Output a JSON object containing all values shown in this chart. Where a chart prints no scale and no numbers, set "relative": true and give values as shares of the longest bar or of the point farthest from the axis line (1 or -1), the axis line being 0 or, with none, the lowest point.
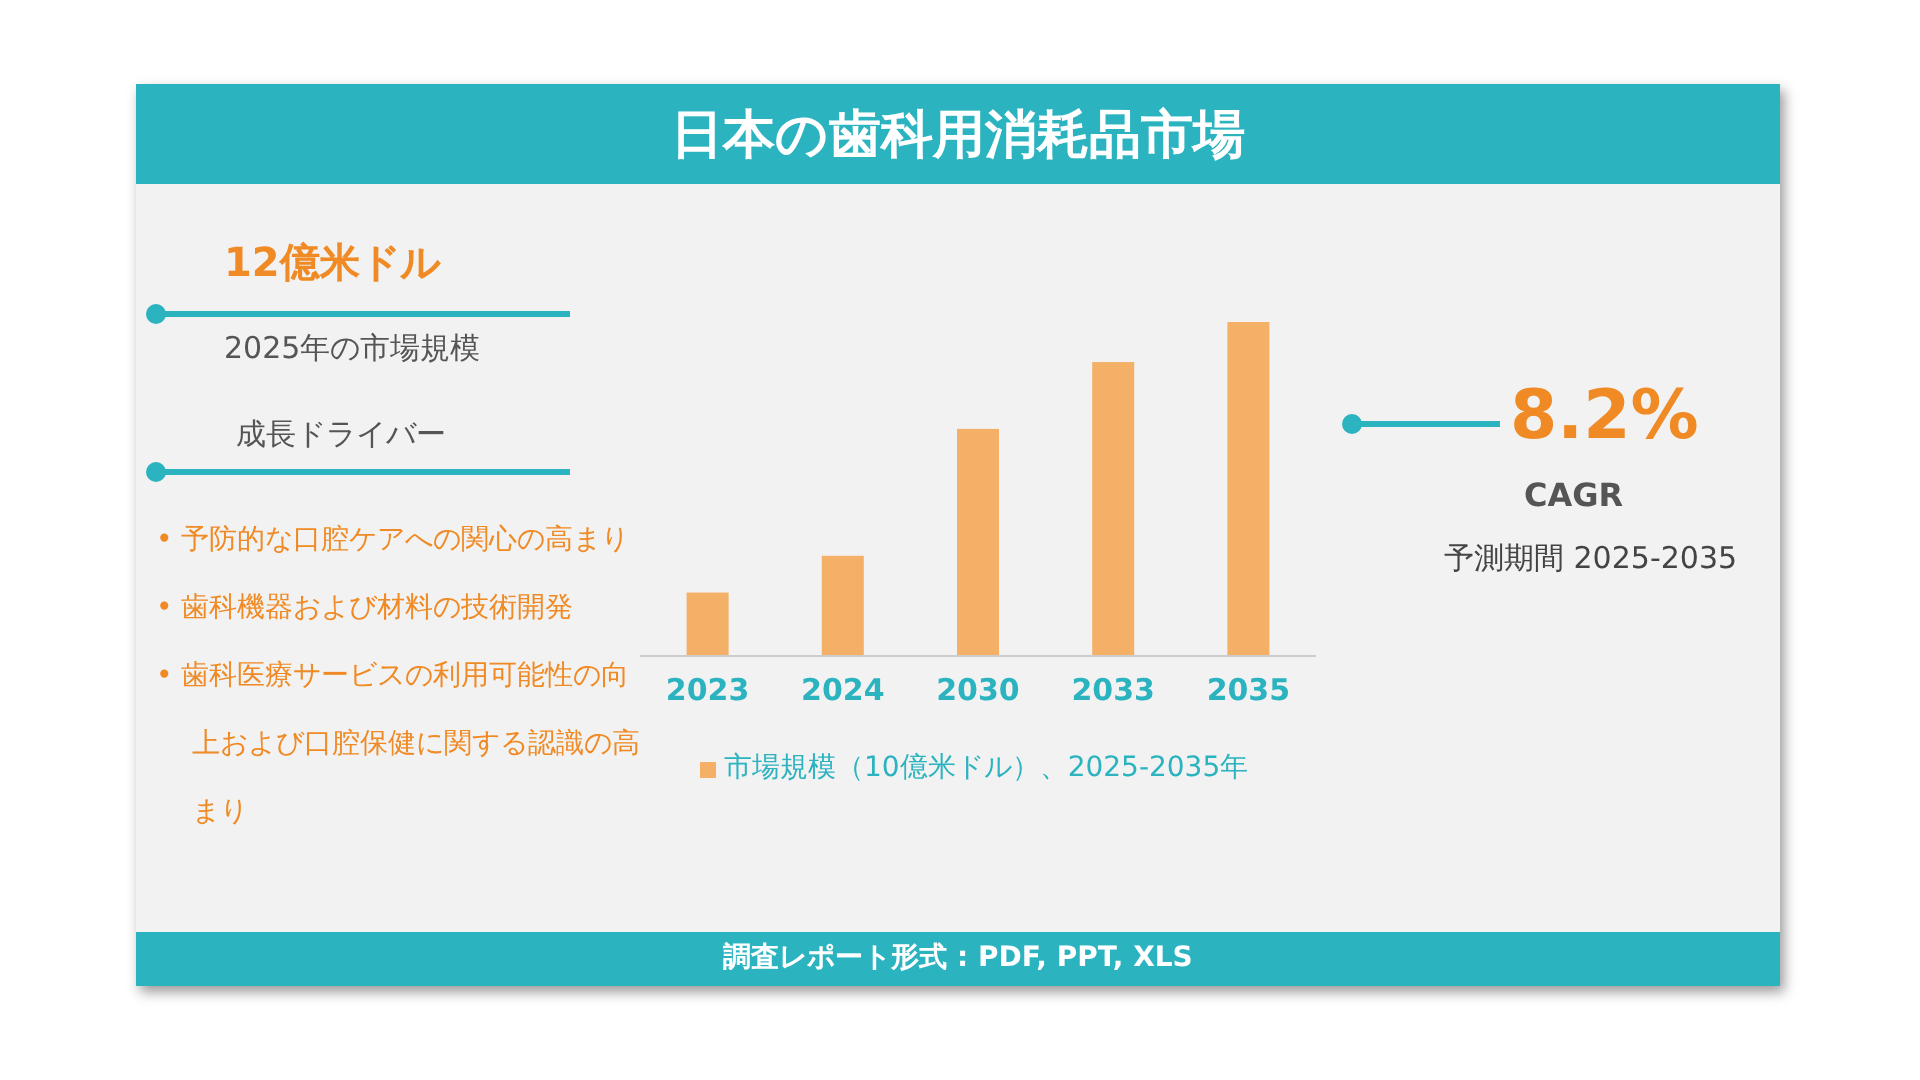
{
  "chart_data": {
    "type": "bar",
    "title": "日本の歯科用消耗品市場",
    "categories": [
      "2023",
      "2024",
      "2030",
      "2033",
      "2035"
    ],
    "relative": true,
    "legend": "bottom",
    "series": [
      {
        "name": "市場規模（10億米ドル）、2025-2035年",
        "color": "#f4b066",
        "values": [
          0.19,
          0.3,
          0.68,
          0.88,
          1
        ]
      }
    ],
    "annotations": [
      "12億米ドル",
      "2025年の市場規模",
      "成長ドライバー",
      "•  予防的な口腔ケアへの関心の高まり",
      "•  歯科機器および材料の技術開発",
      "•  歯科医療サービスの利用可能性の向上および口腔保健に関する認識の高まり",
      "8.2%",
      "CAGR",
      "予測期間 2025-2035",
      "調査レポート形式 : PDF, PPT, XLS"
    ]
  }
}
